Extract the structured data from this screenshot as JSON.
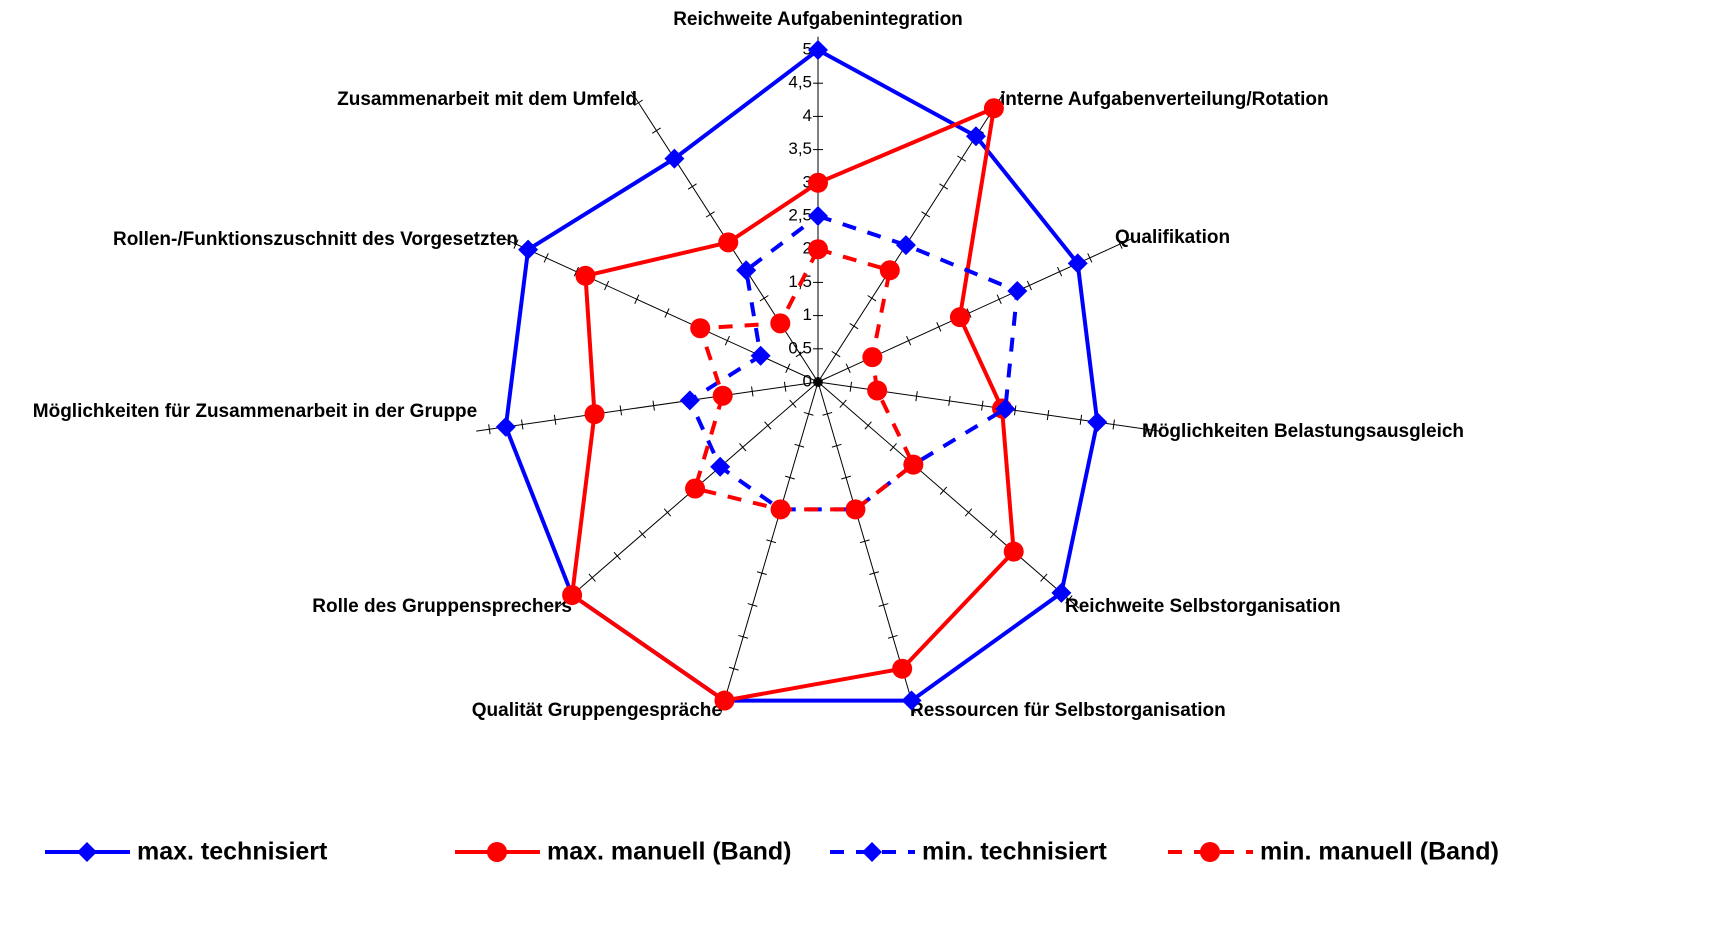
{
  "chart_data": {
    "type": "radar",
    "categories": [
      "Reichweite Aufgabenintegration",
      "interne Aufgabenverteilung/Rotation",
      "Qualifikation",
      "Möglichkeiten Belastungsausgleich",
      "Reichweite Selbstorganisation",
      "Ressourcen für Selbstorganisation",
      "Qualität Gruppengespräche",
      "Rolle des Gruppensprechers",
      "Möglichkeiten für Zusammenarbeit in der Gruppe",
      "Rollen-/Funktionszuschnitt des Vorgesetzten",
      "Zusammenarbeit mit dem Umfeld"
    ],
    "series": [
      {
        "name": "max. technisiert",
        "color": "#0000ff",
        "marker": "diamond",
        "dash": false,
        "values": [
          5,
          4.4,
          4.3,
          4.25,
          4.85,
          5,
          5,
          4.9,
          4.75,
          4.8,
          4.0
        ]
      },
      {
        "name": "max. manuell (Band)",
        "color": "#ff0000",
        "marker": "circle",
        "dash": false,
        "values": [
          3.0,
          4.9,
          2.35,
          2.8,
          3.9,
          4.5,
          5,
          4.9,
          3.4,
          3.85,
          2.5
        ]
      },
      {
        "name": "min. technisiert",
        "color": "#0000ff",
        "marker": "diamond",
        "dash": true,
        "values": [
          2.5,
          2.45,
          3.3,
          2.85,
          1.9,
          2.0,
          2.0,
          1.95,
          1.95,
          0.95,
          2.0
        ]
      },
      {
        "name": "min. manuell (Band)",
        "color": "#ff0000",
        "marker": "circle",
        "dash": true,
        "values": [
          2.0,
          2.0,
          0.9,
          0.9,
          1.9,
          2.0,
          2.0,
          2.45,
          1.45,
          1.95,
          1.05
        ]
      }
    ],
    "ylim": [
      0,
      5
    ],
    "yticks": [
      0,
      {
        "value": 0.5,
        "label": "0,5"
      },
      1,
      {
        "value": 1.5,
        "label": "1,5"
      },
      2,
      {
        "value": 2.5,
        "label": "2,5"
      },
      3,
      {
        "value": 3.5,
        "label": "3,5"
      },
      4,
      {
        "value": 4.5,
        "label": "4,5"
      },
      5
    ],
    "legend": "bottom"
  }
}
